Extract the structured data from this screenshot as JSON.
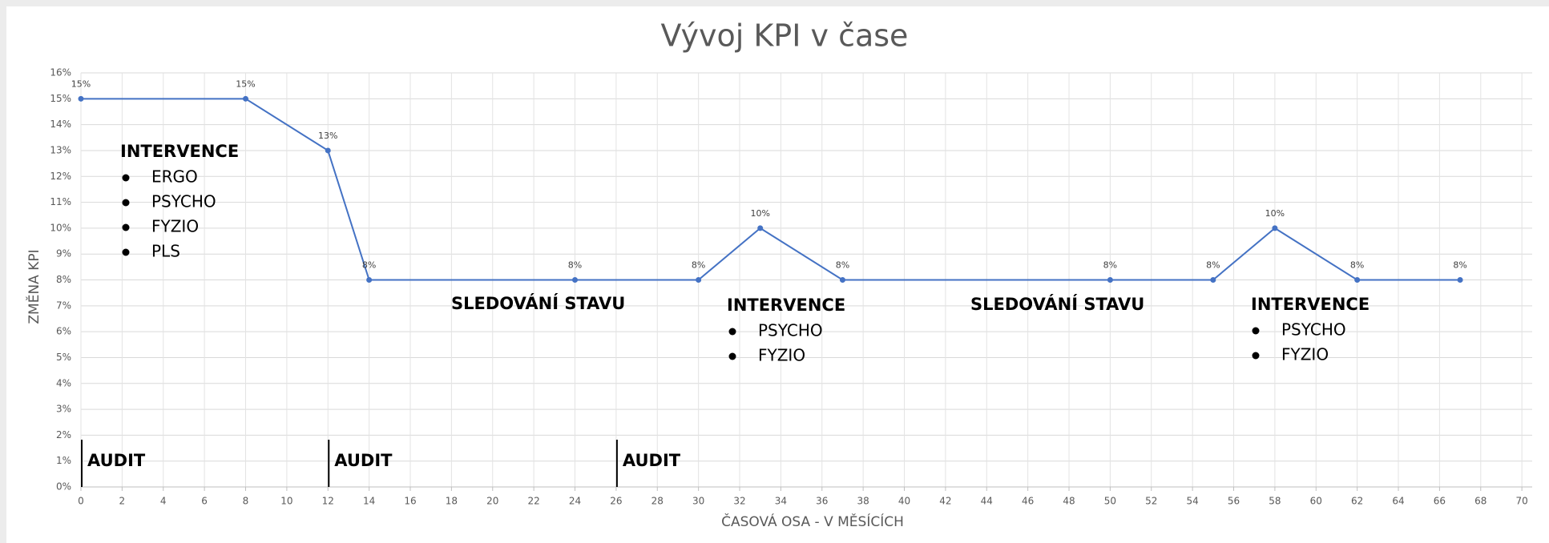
{
  "chart_data": {
    "type": "line",
    "title": "Vývoj KPI v čase",
    "x_label": "ČASOVÁ OSA - V MĚSÍCÍCH",
    "y_label": "ZMĚNA KPI",
    "series": [
      {
        "name": "KPI",
        "color": "#4472c4",
        "x": [
          0,
          8,
          12,
          14,
          24,
          30,
          33,
          37,
          50,
          55,
          58,
          62,
          67
        ],
        "values": [
          15,
          15,
          13,
          8,
          8,
          8,
          10,
          8,
          8,
          8,
          10,
          8,
          8
        ],
        "value_labels": [
          "15%",
          "15%",
          "13%",
          "8%",
          "8%",
          "8%",
          "10%",
          "8%",
          "8%",
          "8%",
          "10%",
          "8%",
          "8%"
        ]
      }
    ],
    "xlim": [
      0,
      70.5
    ],
    "xticks": [
      0,
      2,
      4,
      6,
      8,
      10,
      12,
      14,
      16,
      18,
      20,
      22,
      24,
      26,
      28,
      30,
      32,
      34,
      36,
      38,
      40,
      42,
      44,
      46,
      48,
      50,
      52,
      54,
      56,
      58,
      60,
      62,
      64,
      66,
      68,
      70
    ],
    "ylim": [
      0,
      16
    ],
    "yticks": [
      {
        "value": 0,
        "label": "0%"
      },
      {
        "value": 1,
        "label": "1%"
      },
      {
        "value": 2,
        "label": "2%"
      },
      {
        "value": 3,
        "label": "3%"
      },
      {
        "value": 4,
        "label": "4%"
      },
      {
        "value": 5,
        "label": "5%"
      },
      {
        "value": 6,
        "label": "6%"
      },
      {
        "value": 7,
        "label": "7%"
      },
      {
        "value": 8,
        "label": "8%"
      },
      {
        "value": 9,
        "label": "9%"
      },
      {
        "value": 10,
        "label": "10%"
      },
      {
        "value": 11,
        "label": "11%"
      },
      {
        "value": 12,
        "label": "12%"
      },
      {
        "value": 13,
        "label": "13%"
      },
      {
        "value": 14,
        "label": "14%"
      },
      {
        "value": 15,
        "label": "15%"
      },
      {
        "value": 16,
        "label": "16%"
      }
    ],
    "grid": true,
    "audits": [
      {
        "x": 0,
        "label": "AUDIT"
      },
      {
        "x": 12,
        "label": "AUDIT"
      },
      {
        "x": 26,
        "label": "AUDIT"
      }
    ],
    "annotations": [
      {
        "title": "INTERVENCE",
        "items": [
          "ERGO",
          "PSYCHO",
          "FYZIO",
          "PLS"
        ]
      },
      {
        "title": "SLEDOVÁNÍ STAVU"
      },
      {
        "title": "INTERVENCE",
        "items": [
          "PSYCHO",
          "FYZIO"
        ]
      },
      {
        "title": "SLEDOVÁNÍ STAVU"
      },
      {
        "title": "INTERVENCE",
        "items": [
          "PSYCHO",
          "FYZIO"
        ]
      }
    ]
  }
}
